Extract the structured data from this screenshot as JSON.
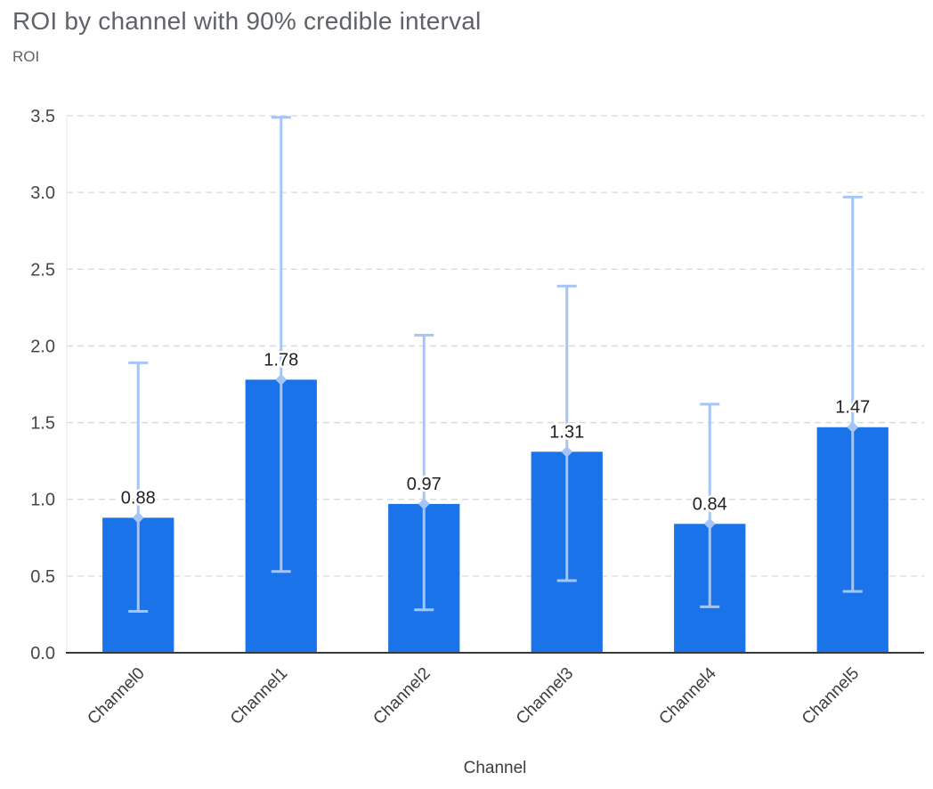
{
  "header": {
    "title": "ROI by channel with 90% credible interval",
    "y_axis_label": "ROI"
  },
  "chart_data": {
    "type": "bar",
    "title": "ROI by channel with 90% credible interval",
    "xlabel": "Channel",
    "ylabel": "ROI",
    "categories": [
      "Channel0",
      "Channel1",
      "Channel2",
      "Channel3",
      "Channel4",
      "Channel5"
    ],
    "values": [
      0.88,
      1.78,
      0.97,
      1.31,
      0.84,
      1.47
    ],
    "value_labels": [
      "0.88",
      "1.78",
      "0.97",
      "1.31",
      "0.84",
      "1.47"
    ],
    "error_low": [
      0.27,
      0.53,
      0.28,
      0.47,
      0.3,
      0.4
    ],
    "error_high": [
      1.89,
      3.49,
      2.07,
      2.39,
      1.62,
      2.97
    ],
    "error_bar_meaning": "90% credible interval",
    "yticks": [
      0.0,
      0.5,
      1.0,
      1.5,
      2.0,
      2.5,
      3.0,
      3.5
    ],
    "ytick_labels": [
      "0.0",
      "0.5",
      "1.0",
      "1.5",
      "2.0",
      "2.5",
      "3.0",
      "3.5"
    ],
    "ylim": [
      0,
      3.5
    ],
    "grid": "horizontal dashed",
    "legend": "none",
    "colors": {
      "bar": "#1a73e8",
      "error_bar": "#a5c5f7",
      "grid": "#d6d8da",
      "axis": "#37393b",
      "axis_faint": "#e6e8ea",
      "title": "#5f6368",
      "tick_label": "#3c4043",
      "value_label": "#202124"
    }
  }
}
